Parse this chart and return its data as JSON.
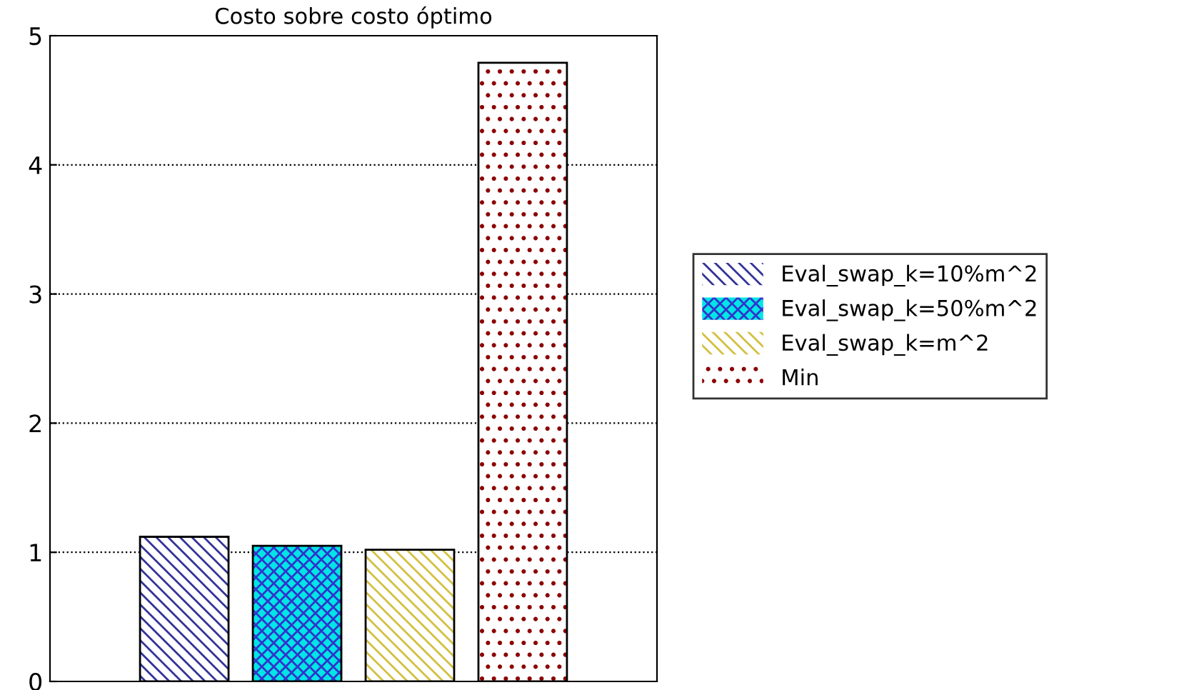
{
  "chart_data": {
    "type": "bar",
    "title": "Costo sobre costo óptimo",
    "categories": [
      null
    ],
    "series": [
      {
        "name": "Eval_swap_k=10%m^2",
        "color": "#333399",
        "values": [
          1.12
        ]
      },
      {
        "name": "Eval_swap_k=50%m^2",
        "color": "#00e5e5",
        "values": [
          1.05
        ]
      },
      {
        "name": "Eval_swap_k=m^2",
        "color": "#d4c040",
        "values": [
          1.02
        ]
      },
      {
        "name": "Min",
        "color": "#8b0000",
        "values": [
          4.79
        ]
      }
    ],
    "ylim": [
      0,
      5
    ],
    "yticks": [
      0,
      1,
      2,
      3,
      4,
      5
    ],
    "grid": "y",
    "legend": "right"
  }
}
